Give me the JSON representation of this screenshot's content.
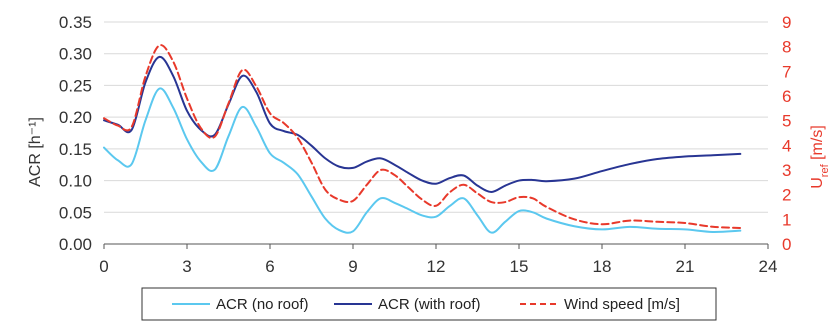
{
  "chart_data": {
    "type": "line",
    "title": "",
    "xlabel": "",
    "ylabel": "ACR [h⁻¹]",
    "y2label_main": "U",
    "y2label_sub": "ref",
    "y2label_unit": " [m/s]",
    "xlim": [
      0,
      24
    ],
    "ylim": [
      0,
      0.35
    ],
    "y2lim": [
      0,
      9
    ],
    "x_ticks": [
      "0",
      "3",
      "6",
      "9",
      "12",
      "15",
      "18",
      "21",
      "24"
    ],
    "y_ticks": [
      "0.00",
      "0.05",
      "0.10",
      "0.15",
      "0.20",
      "0.25",
      "0.30",
      "0.35"
    ],
    "y2_ticks": [
      "0",
      "1",
      "2",
      "3",
      "4",
      "5",
      "6",
      "7",
      "8",
      "9"
    ],
    "grid": "horizontal",
    "legend_position": "bottom",
    "series": [
      {
        "name": "ACR (no roof)",
        "axis": "left",
        "color": "#5bc8ef",
        "style": "solid",
        "x": [
          0,
          0.5,
          1,
          1.5,
          2,
          2.5,
          3,
          3.5,
          4,
          4.5,
          5,
          5.5,
          6,
          6.5,
          7,
          7.5,
          8,
          8.5,
          9,
          9.5,
          10,
          10.5,
          11,
          11.5,
          12,
          12.5,
          13,
          13.5,
          14,
          14.5,
          15,
          15.5,
          16,
          17,
          18,
          19,
          20,
          21,
          22,
          23
        ],
        "values": [
          0.152,
          0.132,
          0.126,
          0.195,
          0.245,
          0.215,
          0.165,
          0.13,
          0.117,
          0.17,
          0.216,
          0.185,
          0.143,
          0.128,
          0.11,
          0.075,
          0.04,
          0.022,
          0.02,
          0.05,
          0.072,
          0.065,
          0.055,
          0.045,
          0.043,
          0.06,
          0.072,
          0.045,
          0.018,
          0.035,
          0.052,
          0.05,
          0.04,
          0.028,
          0.023,
          0.027,
          0.024,
          0.023,
          0.019,
          0.021
        ]
      },
      {
        "name": "ACR (with roof)",
        "axis": "left",
        "color": "#283593",
        "style": "solid",
        "x": [
          0,
          0.5,
          1,
          1.5,
          2,
          2.5,
          3,
          3.5,
          4,
          4.5,
          5,
          5.5,
          6,
          6.5,
          7,
          7.5,
          8,
          8.5,
          9,
          9.5,
          10,
          10.5,
          11,
          11.5,
          12,
          12.5,
          13,
          13.5,
          14,
          14.5,
          15,
          15.5,
          16,
          17,
          18,
          19,
          20,
          21,
          22,
          23
        ],
        "values": [
          0.195,
          0.188,
          0.18,
          0.255,
          0.295,
          0.265,
          0.21,
          0.18,
          0.172,
          0.22,
          0.265,
          0.24,
          0.19,
          0.178,
          0.172,
          0.155,
          0.135,
          0.122,
          0.12,
          0.13,
          0.135,
          0.125,
          0.112,
          0.1,
          0.095,
          0.104,
          0.108,
          0.092,
          0.082,
          0.092,
          0.1,
          0.101,
          0.099,
          0.103,
          0.115,
          0.126,
          0.134,
          0.138,
          0.14,
          0.142
        ]
      },
      {
        "name": "Wind speed [m/s]",
        "axis": "right",
        "color": "#e8392b",
        "style": "dashed",
        "x": [
          0,
          0.5,
          1,
          1.5,
          2,
          2.5,
          3,
          3.5,
          4,
          4.5,
          5,
          5.5,
          6,
          6.5,
          7,
          7.5,
          8,
          8.5,
          9,
          9.5,
          10,
          10.5,
          11,
          11.5,
          12,
          12.5,
          13,
          13.5,
          14,
          14.5,
          15,
          15.5,
          16,
          17,
          18,
          19,
          20,
          21,
          22,
          23
        ],
        "values": [
          5.1,
          4.8,
          4.75,
          6.8,
          8.05,
          7.4,
          5.9,
          4.7,
          4.35,
          5.7,
          7.05,
          6.4,
          5.3,
          4.9,
          4.3,
          3.3,
          2.2,
          1.8,
          1.75,
          2.4,
          3.0,
          2.8,
          2.3,
          1.8,
          1.55,
          2.1,
          2.4,
          2.05,
          1.7,
          1.7,
          1.9,
          1.85,
          1.5,
          1.0,
          0.8,
          0.95,
          0.9,
          0.85,
          0.7,
          0.65
        ]
      }
    ]
  }
}
